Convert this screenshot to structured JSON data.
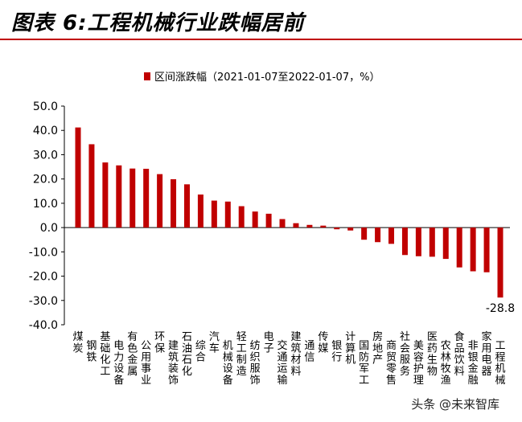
{
  "header": {
    "title": "图表 6:工程机械行业跌幅居前"
  },
  "watermark": "头条 @未来智库",
  "chart_data": {
    "type": "bar",
    "title": "图表 6:工程机械行业跌幅居前",
    "legend": {
      "label": "区间涨跌幅（2021-01-07至2022-01-07，%）",
      "position": "top",
      "color": "#c00000"
    },
    "xlabel": "",
    "ylabel": "",
    "ylim": [
      -40,
      50
    ],
    "yticks": [
      50,
      40,
      30,
      20,
      10,
      0,
      -10,
      -20,
      -30,
      -40
    ],
    "ytick_labels": [
      "50.0",
      "40.0",
      "30.0",
      "20.0",
      "10.0",
      "0.0",
      "-10.0",
      "-20.0",
      "-30.0",
      "-40.0"
    ],
    "grid": false,
    "bar_color": "#c00000",
    "categories": [
      "煤炭",
      "钢铁",
      "基础化工",
      "电力设备",
      "有色金属",
      "公用事业",
      "环保",
      "建筑装饰",
      "石油石化",
      "综合",
      "汽车",
      "机械设备",
      "轻工制造",
      "纺织服饰",
      "电子",
      "交通运输",
      "建筑材料",
      "通信",
      "传媒",
      "银行",
      "计算机",
      "国防军工",
      "房地产",
      "商贸零售",
      "社会服务",
      "美容护理",
      "医药生物",
      "农林牧渔",
      "食品饮料",
      "非银金融",
      "家用电器",
      "工程机械"
    ],
    "values": [
      41.2,
      34.3,
      26.8,
      25.6,
      24.3,
      24.2,
      22.0,
      19.9,
      17.8,
      13.6,
      11.1,
      10.7,
      8.8,
      6.6,
      5.7,
      3.5,
      1.8,
      1.1,
      0.8,
      -0.7,
      -1.2,
      -5.0,
      -6.0,
      -6.7,
      -11.3,
      -11.8,
      -12.0,
      -12.9,
      -16.4,
      -18.0,
      -18.4,
      -28.8
    ],
    "data_labels": [
      {
        "category": "工程机械",
        "text": "-28.8"
      }
    ]
  }
}
